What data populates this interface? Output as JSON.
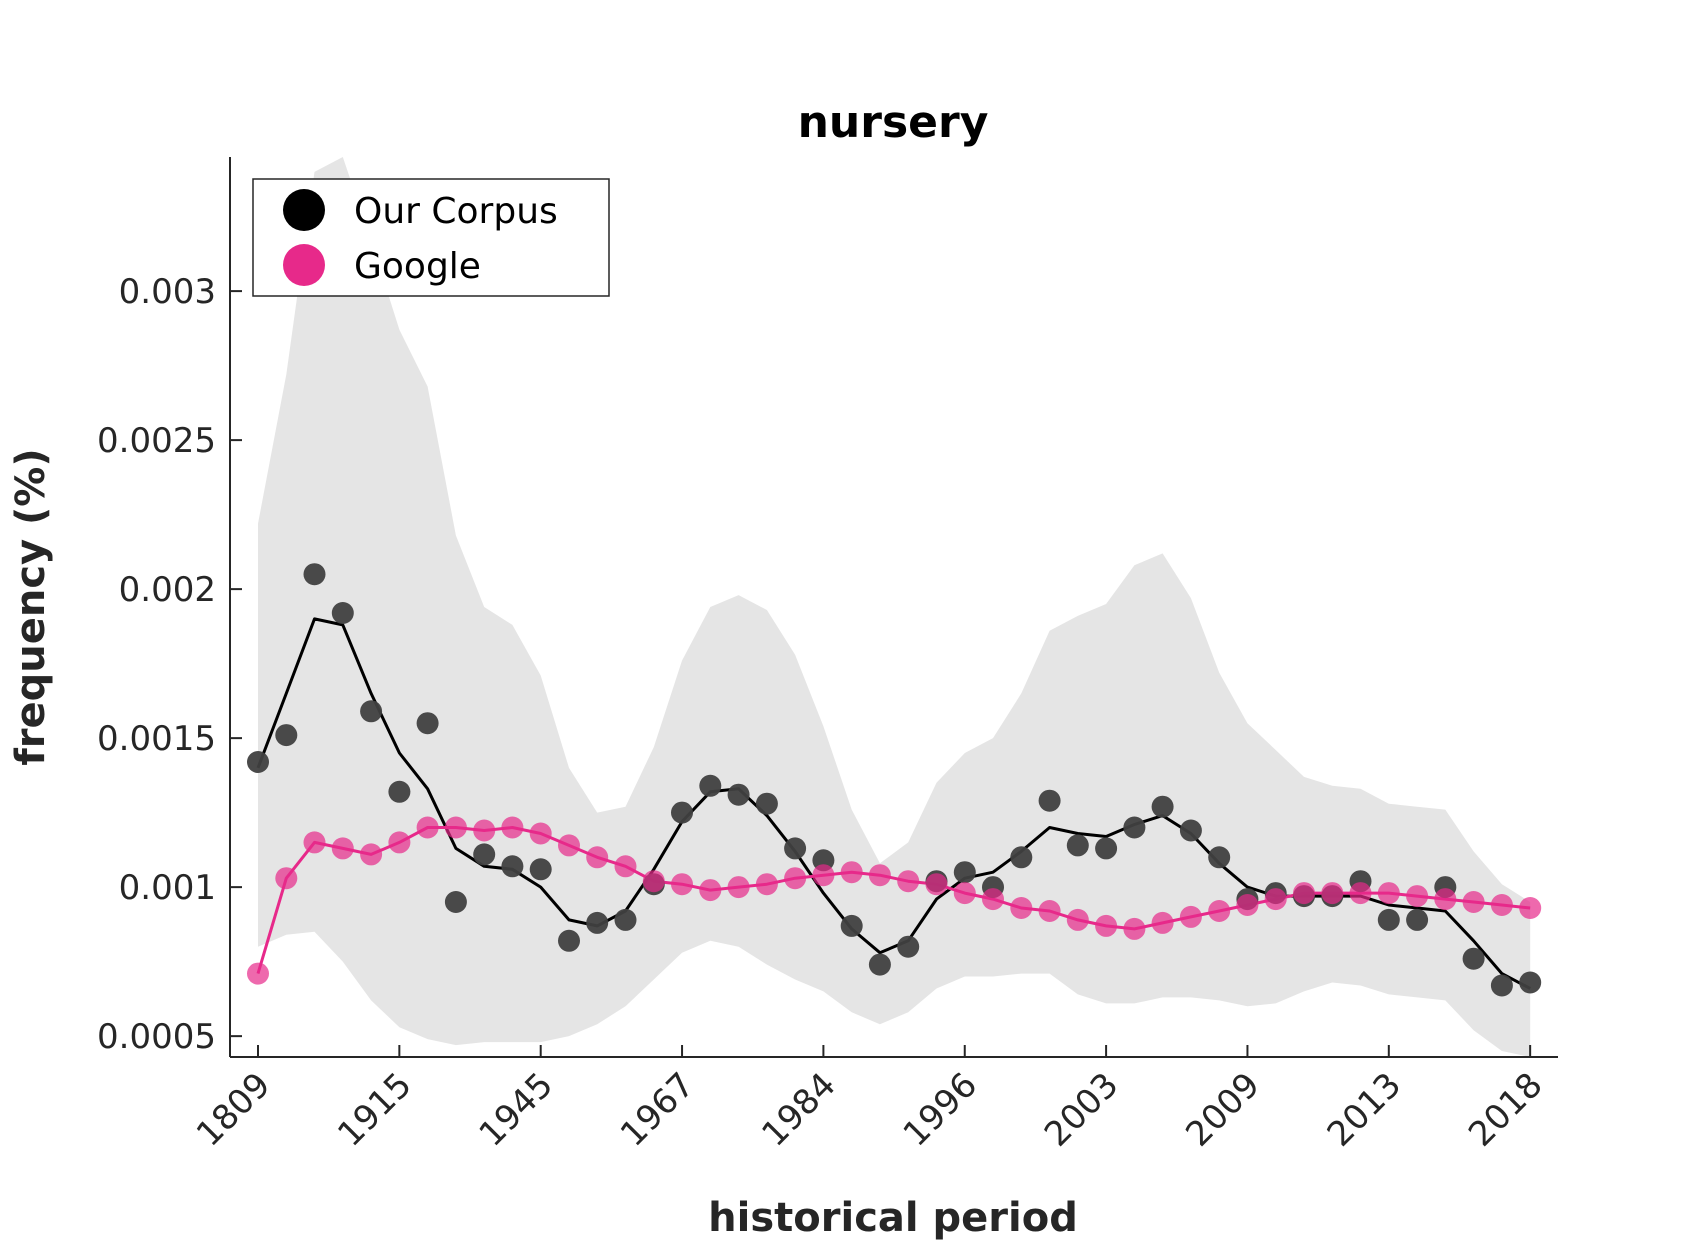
{
  "chart_data": {
    "type": "scatter",
    "title": "nursery",
    "xlabel": "historical period",
    "ylabel": "frequency (%)",
    "ylim": [
      0.00043,
      0.00345
    ],
    "grid": false,
    "legend_position": "top-left",
    "x_tick_labels": [
      "1809",
      "1915",
      "1945",
      "1967",
      "1984",
      "1996",
      "2003",
      "2009",
      "2013",
      "2018"
    ],
    "x_tick_positions": [
      1,
      6,
      11,
      16,
      21,
      26,
      31,
      36,
      41,
      46
    ],
    "y_ticks": [
      0.0005,
      0.001,
      0.0015,
      0.002,
      0.0025,
      0.003
    ],
    "y_tick_labels": [
      "0.0005",
      "0.001",
      "0.0015",
      "0.002",
      "0.0025",
      "0.003"
    ],
    "x": [
      1,
      2,
      3,
      4,
      5,
      6,
      7,
      8,
      9,
      10,
      11,
      12,
      13,
      14,
      15,
      16,
      17,
      18,
      19,
      20,
      21,
      22,
      23,
      24,
      25,
      26,
      27,
      28,
      29,
      30,
      31,
      32,
      33,
      34,
      35,
      36,
      37,
      38,
      39,
      40,
      41,
      42,
      43,
      44,
      45,
      46
    ],
    "series": [
      {
        "name": "Our Corpus",
        "color": "#000000",
        "point_color": "#404040",
        "points": [
          0.00142,
          0.00151,
          0.00205,
          0.00192,
          0.00159,
          0.00132,
          0.00155,
          0.00095,
          0.00111,
          0.00107,
          0.00106,
          0.00082,
          0.00088,
          0.00089,
          0.00101,
          0.00125,
          0.00134,
          0.00131,
          0.00128,
          0.00113,
          0.00109,
          0.00087,
          0.00074,
          0.0008,
          0.00102,
          0.00105,
          0.001,
          0.0011,
          0.00129,
          0.00114,
          0.00113,
          0.0012,
          0.00127,
          0.00119,
          0.0011,
          0.00096,
          0.00098,
          0.00097,
          0.00097,
          0.00102,
          0.00089,
          0.00089,
          0.001,
          0.00076,
          0.00067,
          0.00068
        ],
        "smoothed": [
          0.0014,
          0.00165,
          0.0019,
          0.00188,
          0.00165,
          0.00145,
          0.00133,
          0.00113,
          0.00107,
          0.00106,
          0.001,
          0.00089,
          0.00087,
          0.00092,
          0.00106,
          0.00122,
          0.00132,
          0.00133,
          0.00124,
          0.00112,
          0.00098,
          0.00086,
          0.00078,
          0.00082,
          0.00096,
          0.00103,
          0.00105,
          0.00112,
          0.0012,
          0.00118,
          0.00117,
          0.00121,
          0.00124,
          0.00118,
          0.00108,
          0.001,
          0.00097,
          0.00097,
          0.00097,
          0.00097,
          0.00094,
          0.00093,
          0.00092,
          0.00082,
          0.00071,
          0.00066
        ]
      },
      {
        "name": "Google",
        "color": "#e7298a",
        "points": [
          0.00071,
          0.00103,
          0.00115,
          0.00113,
          0.00111,
          0.00115,
          0.0012,
          0.0012,
          0.00119,
          0.0012,
          0.00118,
          0.00114,
          0.0011,
          0.00107,
          0.00102,
          0.00101,
          0.00099,
          0.001,
          0.00101,
          0.00103,
          0.00104,
          0.00105,
          0.00104,
          0.00102,
          0.00101,
          0.00098,
          0.00096,
          0.00093,
          0.00092,
          0.00089,
          0.00087,
          0.00086,
          0.00088,
          0.0009,
          0.00092,
          0.00094,
          0.00096,
          0.00098,
          0.00098,
          0.00098,
          0.00098,
          0.00097,
          0.00096,
          0.00095,
          0.00094,
          0.00093
        ]
      }
    ],
    "confidence_band": {
      "color": "#e5e5e5",
      "upper": [
        0.00222,
        0.00272,
        0.0034,
        0.00345,
        0.00317,
        0.00287,
        0.00268,
        0.00218,
        0.00194,
        0.00188,
        0.00171,
        0.0014,
        0.00125,
        0.00127,
        0.00147,
        0.00176,
        0.00194,
        0.00198,
        0.00193,
        0.00178,
        0.00154,
        0.00126,
        0.00108,
        0.00115,
        0.00135,
        0.00145,
        0.0015,
        0.00165,
        0.00186,
        0.00191,
        0.00195,
        0.00208,
        0.00212,
        0.00197,
        0.00172,
        0.00155,
        0.00146,
        0.00137,
        0.00134,
        0.00133,
        0.00128,
        0.00127,
        0.00126,
        0.00112,
        0.00101,
        0.00095
      ],
      "lower": [
        0.0008,
        0.00084,
        0.00085,
        0.00075,
        0.00062,
        0.00053,
        0.00049,
        0.00047,
        0.00048,
        0.00048,
        0.00048,
        0.0005,
        0.00054,
        0.0006,
        0.00069,
        0.00078,
        0.00082,
        0.0008,
        0.00074,
        0.00069,
        0.00065,
        0.00058,
        0.00054,
        0.00058,
        0.00066,
        0.0007,
        0.0007,
        0.00071,
        0.00071,
        0.00064,
        0.00061,
        0.00061,
        0.00063,
        0.00063,
        0.00062,
        0.0006,
        0.00061,
        0.00065,
        0.00068,
        0.00067,
        0.00064,
        0.00063,
        0.00062,
        0.00052,
        0.00045,
        0.00043
      ]
    }
  }
}
